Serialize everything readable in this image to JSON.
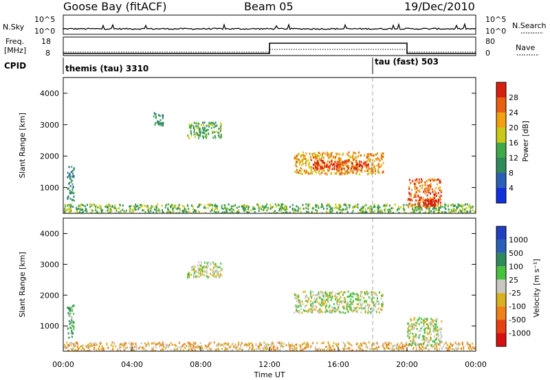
{
  "header": {
    "station": "Goose Bay (fitACF)",
    "beam": "Beam 05",
    "date": "19/Dec/2010"
  },
  "colors": {
    "power_scale": [
      "#1030e0",
      "#2a5fb8",
      "#2f8a5a",
      "#3fa84a",
      "#c8c818",
      "#f0a010",
      "#e86010",
      "#d82010"
    ],
    "velocity_scale": [
      "#2040c0",
      "#2a5fb8",
      "#2f8a5a",
      "#48c040",
      "#c8c8c0",
      "#d8b020",
      "#f08018",
      "#e84010",
      "#d81010"
    ],
    "axis": "#000000",
    "dashed_marker": "#aaaaaa"
  },
  "top_panels": {
    "nsky": {
      "left_label": "N.Sky",
      "right_label": "N.Search",
      "left_ticks": [
        "10^5",
        "10^0"
      ],
      "right_ticks": [
        "10^5",
        "10^0"
      ]
    },
    "freq": {
      "left_label_line1": "Freq.",
      "left_label_line2": "[MHz]",
      "right_label": "Nave",
      "left_ticks": [
        "18",
        "8"
      ],
      "right_ticks": [
        "80",
        "0"
      ],
      "freq_steps": [
        {
          "t_start": 0,
          "t_end": 12,
          "value": 8
        },
        {
          "t_start": 12,
          "t_end": 20,
          "value": 18
        },
        {
          "t_start": 20,
          "t_end": 24,
          "value": 8
        }
      ]
    },
    "cpid": {
      "label": "CPID",
      "segments": [
        {
          "t_start": 0,
          "text": "themis (tau) 3310"
        },
        {
          "t_start": 18,
          "text": "tau (fast) 503"
        }
      ]
    }
  },
  "chart_data": [
    {
      "type": "heatmap",
      "title": "",
      "quantity": "Power",
      "ylabel": "Slant Range [km]",
      "xlabel": "",
      "xlim": [
        0,
        24
      ],
      "ylim": [
        180,
        4500
      ],
      "yticks": [
        1000,
        2000,
        3000,
        4000
      ],
      "colorbar": {
        "label": "Power [dB]",
        "range": [
          0,
          32
        ],
        "ticks": [
          "4",
          "8",
          "12",
          "16",
          "20",
          "24",
          "28"
        ]
      },
      "regions": [
        {
          "t_start": 0.0,
          "t_end": 24.0,
          "r_low": 200,
          "r_high": 500,
          "level": 3
        },
        {
          "t_start": 13.4,
          "t_end": 18.6,
          "r_low": 1450,
          "r_high": 2150,
          "level": 5
        },
        {
          "t_start": 14.5,
          "t_end": 17.8,
          "r_low": 1600,
          "r_high": 1900,
          "level": 7
        },
        {
          "t_start": 20.0,
          "t_end": 22.0,
          "r_low": 400,
          "r_high": 1300,
          "level": 6
        },
        {
          "t_start": 21.0,
          "t_end": 21.8,
          "r_low": 450,
          "r_high": 650,
          "level": 8
        },
        {
          "t_start": 7.2,
          "t_end": 9.2,
          "r_low": 2600,
          "r_high": 3100,
          "level": 3
        },
        {
          "t_start": 5.2,
          "t_end": 5.8,
          "r_low": 3000,
          "r_high": 3400,
          "level": 2
        },
        {
          "t_start": 0.2,
          "t_end": 0.6,
          "r_low": 600,
          "r_high": 1700,
          "level": 2
        }
      ]
    },
    {
      "type": "heatmap",
      "title": "",
      "quantity": "Velocity",
      "ylabel": "Slant Range [km]",
      "xlabel": "Time UT",
      "xlim": [
        0,
        24
      ],
      "ylim": [
        180,
        4500
      ],
      "yticks": [
        1000,
        2000,
        3000,
        4000
      ],
      "xticks": [
        "00:00",
        "04:00",
        "08:00",
        "12:00",
        "16:00",
        "20:00",
        "00:00"
      ],
      "colorbar": {
        "label": "Velocity [m s⁻¹]",
        "ticks": [
          "1000",
          "500",
          "100",
          "25",
          "-25",
          "-100",
          "-500",
          "-1000"
        ]
      },
      "regions": [
        {
          "t_start": 0.0,
          "t_end": 24.0,
          "r_low": 200,
          "r_high": 500,
          "level": 5
        },
        {
          "t_start": 13.4,
          "t_end": 18.6,
          "r_low": 1450,
          "r_high": 2150,
          "level": 4
        },
        {
          "t_start": 20.0,
          "t_end": 22.0,
          "r_low": 400,
          "r_high": 1300,
          "level": 4
        },
        {
          "t_start": 7.2,
          "t_end": 9.2,
          "r_low": 2600,
          "r_high": 3100,
          "level": 4
        },
        {
          "t_start": 0.2,
          "t_end": 0.6,
          "r_low": 600,
          "r_high": 1700,
          "level": 3
        }
      ]
    }
  ]
}
